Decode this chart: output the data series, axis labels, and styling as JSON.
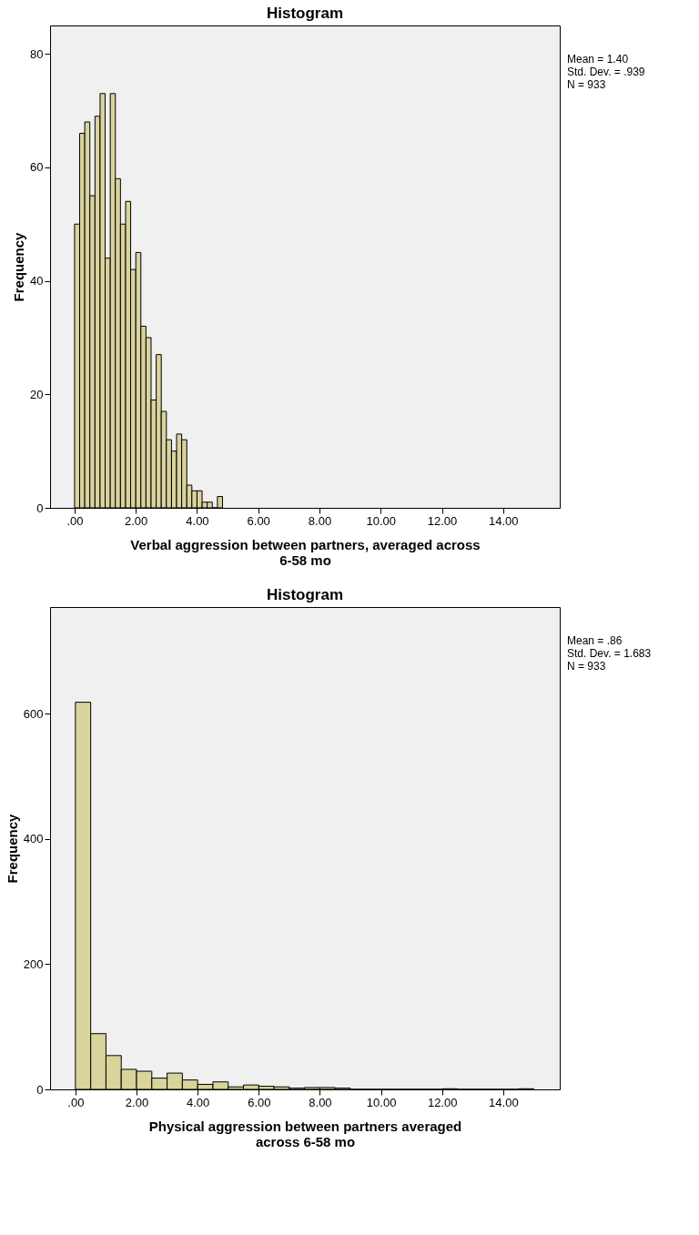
{
  "chart_data": [
    {
      "type": "histogram",
      "title": "Histogram",
      "xlabel": "Verbal aggression between partners, averaged across 6-58 mo",
      "ylabel": "Frequency",
      "bins": [
        0,
        0.167,
        0.333,
        0.5,
        0.667,
        0.833,
        1,
        1.167,
        1.333,
        1.5,
        1.667,
        1.833,
        2,
        2.167,
        2.333,
        2.5,
        2.667,
        2.833,
        3,
        3.167,
        3.333,
        3.5,
        3.667,
        3.833,
        4,
        4.167,
        4.333,
        4.5,
        4.667,
        4.833
      ],
      "values": [
        50,
        66,
        68,
        55,
        69,
        73,
        44,
        73,
        58,
        50,
        54,
        42,
        45,
        32,
        30,
        19,
        27,
        17,
        12,
        10,
        13,
        12,
        4,
        3,
        3,
        1,
        1,
        0,
        2
      ],
      "color": "#d9d39c",
      "xlim": [
        -0.8,
        15.85
      ],
      "ylim": [
        0,
        85
      ],
      "xticks": [
        {
          "value": 0,
          "label": ".00"
        },
        {
          "value": 2,
          "label": "2.00"
        },
        {
          "value": 4,
          "label": "4.00"
        },
        {
          "value": 6,
          "label": "6.00"
        },
        {
          "value": 8,
          "label": "8.00"
        },
        {
          "value": 10,
          "label": "10.00"
        },
        {
          "value": 12,
          "label": "12.00"
        },
        {
          "value": 14,
          "label": "14.00"
        }
      ],
      "yticks": [
        0,
        20,
        40,
        60,
        80
      ],
      "grid": false,
      "annotations": [
        "Mean = 1.40",
        "Std. Dev. = .939",
        "N = 933"
      ]
    },
    {
      "type": "histogram",
      "title": "Histogram",
      "xlabel": "Physical aggression between partners averaged across 6-58 mo",
      "ylabel": "Frequency",
      "bins": [
        0,
        0.5,
        1,
        1.5,
        2,
        2.5,
        3,
        3.5,
        4,
        4.5,
        5,
        5.5,
        6,
        6.5,
        7,
        7.5,
        8,
        8.5,
        9,
        9.5,
        10,
        10.5,
        11,
        11.5,
        12,
        12.5,
        13,
        13.5,
        14,
        14.5,
        15
      ],
      "values": [
        618,
        89,
        54,
        32,
        29,
        18,
        26,
        15,
        8,
        12,
        4,
        7,
        5,
        4,
        2,
        3,
        3,
        2,
        0,
        0,
        0,
        0,
        0,
        0,
        1,
        0,
        0,
        0,
        0,
        1
      ],
      "color": "#d9d39c",
      "xlim": [
        -0.83,
        15.85
      ],
      "ylim": [
        0,
        770
      ],
      "xticks": [
        {
          "value": 0,
          "label": ".00"
        },
        {
          "value": 2,
          "label": "2.00"
        },
        {
          "value": 4,
          "label": "4.00"
        },
        {
          "value": 6,
          "label": "6.00"
        },
        {
          "value": 8,
          "label": "8.00"
        },
        {
          "value": 10,
          "label": "10.00"
        },
        {
          "value": 12,
          "label": "12.00"
        },
        {
          "value": 14,
          "label": "14.00"
        }
      ],
      "yticks": [
        0,
        200,
        400,
        600
      ],
      "grid": false,
      "annotations": [
        "Mean = .86",
        "Std. Dev. = 1.683",
        "N = 933"
      ]
    }
  ]
}
